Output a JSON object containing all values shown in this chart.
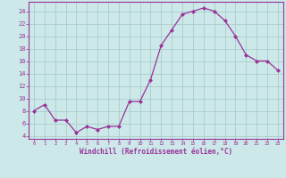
{
  "x": [
    0,
    1,
    2,
    3,
    4,
    5,
    6,
    7,
    8,
    9,
    10,
    11,
    12,
    13,
    14,
    15,
    16,
    17,
    18,
    19,
    20,
    21,
    22,
    23
  ],
  "y": [
    8,
    9,
    6.5,
    6.5,
    4.5,
    5.5,
    5,
    5.5,
    5.5,
    9.5,
    9.5,
    13,
    18.5,
    21,
    23.5,
    24,
    24.5,
    24,
    22.5,
    20,
    17,
    16,
    16,
    14.5
  ],
  "line_color": "#993399",
  "marker_color": "#993399",
  "bg_color": "#cce8e8",
  "grid_color": "#aacccc",
  "xlabel": "Windchill (Refroidissement éolien,°C)",
  "ylabel": "",
  "yticks": [
    4,
    6,
    8,
    10,
    12,
    14,
    16,
    18,
    20,
    22,
    24
  ],
  "xticks": [
    0,
    1,
    2,
    3,
    4,
    5,
    6,
    7,
    8,
    9,
    10,
    11,
    12,
    13,
    14,
    15,
    16,
    17,
    18,
    19,
    20,
    21,
    22,
    23
  ],
  "ylim": [
    3.5,
    25.5
  ],
  "xlim": [
    -0.5,
    23.5
  ],
  "axis_color": "#993399",
  "tick_color": "#993399",
  "label_color": "#993399"
}
